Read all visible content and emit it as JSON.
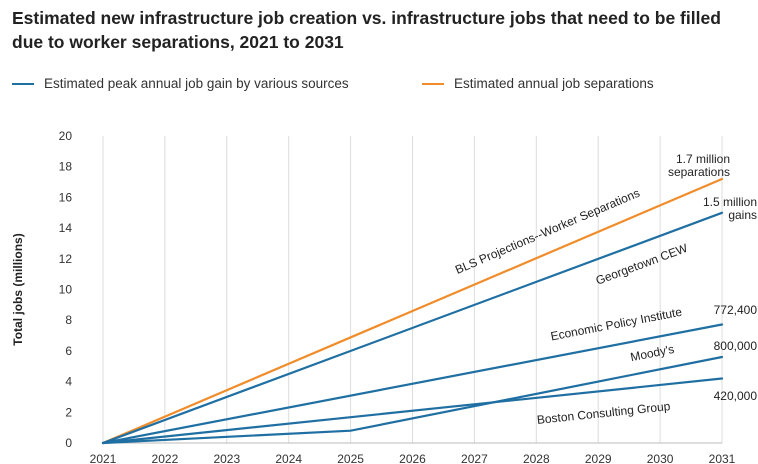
{
  "chart_data": {
    "type": "line",
    "title": "Estimated new infrastructure job creation vs. infrastructure jobs that need to be filled due to worker separations, 2021 to 2031",
    "ylabel": "Total jobs (millions)",
    "xlabel": "",
    "xlim": [
      2021,
      2031
    ],
    "ylim": [
      0,
      20
    ],
    "x_ticks": [
      "2021",
      "2022",
      "2023",
      "2024",
      "2025",
      "2026",
      "2027",
      "2028",
      "2029",
      "2030",
      "2031"
    ],
    "y_ticks": [
      "0",
      "2",
      "4",
      "6",
      "8",
      "10",
      "12",
      "14",
      "16",
      "18",
      "20"
    ],
    "grid": "vertical",
    "legend": {
      "placement": "top",
      "entries": [
        {
          "label": "Estimated peak annual job gain by various sources",
          "color": "#1f6fa3"
        },
        {
          "label": "Estimated annual job separations",
          "color": "#f08c2a"
        }
      ]
    },
    "series": [
      {
        "name": "BLS Projections--Worker Separations",
        "color": "#f08c2a",
        "points": [
          [
            2021,
            0
          ],
          [
            2031,
            17.2
          ]
        ]
      },
      {
        "name": "Georgetown CEW",
        "color": "#1f6fa3",
        "points": [
          [
            2021,
            0
          ],
          [
            2031,
            15.0
          ]
        ]
      },
      {
        "name": "Economic Policy Institute",
        "color": "#1f6fa3",
        "points": [
          [
            2021,
            0
          ],
          [
            2031,
            7.72
          ]
        ]
      },
      {
        "name": "Moody's",
        "color": "#1f6fa3",
        "points": [
          [
            2021,
            0
          ],
          [
            2025,
            0.8
          ],
          [
            2031,
            5.6
          ]
        ]
      },
      {
        "name": "Boston Consulting Group",
        "color": "#1f6fa3",
        "points": [
          [
            2021,
            0
          ],
          [
            2031,
            4.2
          ]
        ]
      }
    ],
    "end_labels": [
      {
        "lines": [
          "1.7 million",
          "separations"
        ]
      },
      {
        "lines": [
          "1.5 million",
          "gains"
        ]
      },
      {
        "lines": [
          "772,400"
        ]
      },
      {
        "lines": [
          "800,000"
        ]
      },
      {
        "lines": [
          "420,000"
        ]
      }
    ]
  }
}
